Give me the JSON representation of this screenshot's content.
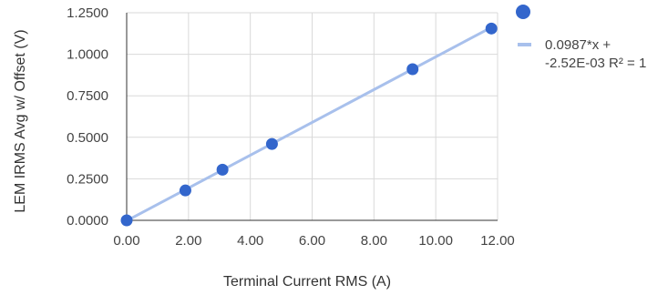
{
  "chart_data": {
    "type": "scatter",
    "title": "",
    "xlabel": "Terminal Current RMS (A)",
    "ylabel": "LEM IRMS Avg w/ Offset (V)",
    "xlim": [
      0,
      12
    ],
    "ylim": [
      0,
      1.25
    ],
    "x_ticks": [
      "0.00",
      "2.00",
      "4.00",
      "6.00",
      "8.00",
      "10.00",
      "12.00"
    ],
    "y_ticks": [
      "0.0000",
      "0.2500",
      "0.5000",
      "0.7500",
      "1.0000",
      "1.2500"
    ],
    "grid": true,
    "legend_position": "right",
    "series": [
      {
        "points": [
          {
            "x": 0.0,
            "y": 0.0
          },
          {
            "x": 1.9,
            "y": 0.18
          },
          {
            "x": 3.1,
            "y": 0.305
          },
          {
            "x": 4.7,
            "y": 0.46
          },
          {
            "x": 9.25,
            "y": 0.91
          },
          {
            "x": 11.8,
            "y": 1.155
          }
        ],
        "color": "#3366cc"
      }
    ],
    "trendline": {
      "slope": 0.0987,
      "intercept": -0.00252,
      "label_line1": "0.0987*x +",
      "label_line2": "-2.52E-03 R² = 1",
      "color": "#a8c0ec"
    }
  }
}
